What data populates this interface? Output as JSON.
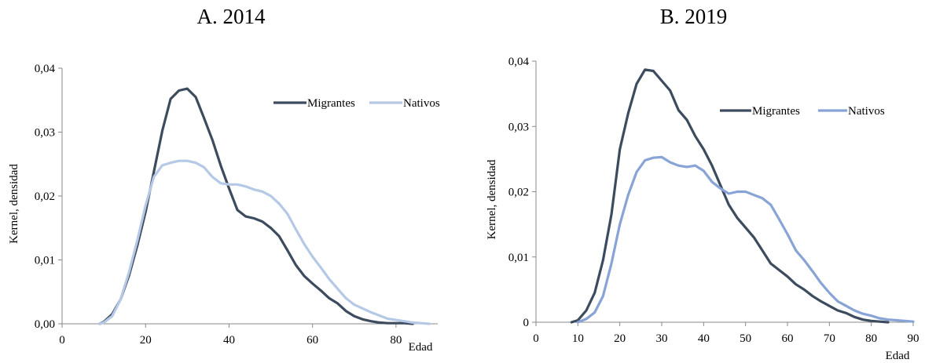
{
  "chart_data": [
    {
      "type": "line",
      "title": "A.  2014",
      "xlabel": "Edad",
      "ylabel": "Kernel, densidad",
      "xlim": [
        0,
        90
      ],
      "ylim": [
        0,
        0.04
      ],
      "xticks": [
        0,
        20,
        40,
        60,
        80
      ],
      "xtick_labels": [
        "0",
        "20",
        "40",
        "60",
        "80"
      ],
      "yticks": [
        0,
        0.01,
        0.02,
        0.03,
        0.04
      ],
      "ytick_labels": [
        "0,00",
        "0,01",
        "0,02",
        "0,03",
        "0,04"
      ],
      "grid": false,
      "legend": "top-right",
      "series": [
        {
          "name": "Migrantes",
          "color": "#3d4b5e",
          "x": [
            9,
            10,
            12,
            14,
            16,
            18,
            20,
            22,
            24,
            26,
            28,
            30,
            32,
            34,
            36,
            38,
            40,
            42,
            44,
            46,
            48,
            50,
            52,
            54,
            56,
            58,
            60,
            62,
            64,
            66,
            68,
            70,
            72,
            74,
            76,
            78,
            80,
            82,
            84
          ],
          "y": [
            0,
            0.0003,
            0.0015,
            0.0038,
            0.0075,
            0.0122,
            0.0175,
            0.0238,
            0.0302,
            0.0352,
            0.0365,
            0.0368,
            0.0355,
            0.0322,
            0.0288,
            0.0248,
            0.0212,
            0.0178,
            0.0168,
            0.0165,
            0.016,
            0.015,
            0.0137,
            0.0115,
            0.0092,
            0.0075,
            0.0063,
            0.0052,
            0.004,
            0.0032,
            0.002,
            0.0012,
            0.0007,
            0.0004,
            0.0002,
            0.0001,
            0.0001,
            0.0001,
            0
          ]
        },
        {
          "name": "Nativos",
          "color": "#b5c9e6",
          "x": [
            9,
            10,
            12,
            14,
            16,
            18,
            20,
            22,
            24,
            26,
            28,
            30,
            32,
            34,
            36,
            38,
            40,
            42,
            44,
            46,
            48,
            50,
            52,
            54,
            56,
            58,
            60,
            62,
            64,
            66,
            68,
            70,
            72,
            74,
            76,
            78,
            80,
            82,
            84,
            86,
            88
          ],
          "y": [
            0,
            0.0002,
            0.0012,
            0.0038,
            0.008,
            0.013,
            0.0185,
            0.023,
            0.0248,
            0.0252,
            0.0255,
            0.0255,
            0.0252,
            0.0245,
            0.023,
            0.022,
            0.0218,
            0.0218,
            0.0215,
            0.021,
            0.0207,
            0.02,
            0.0188,
            0.0172,
            0.0148,
            0.0125,
            0.0105,
            0.0088,
            0.007,
            0.0055,
            0.004,
            0.003,
            0.0024,
            0.0018,
            0.0013,
            0.0008,
            0.0006,
            0.0004,
            0.0002,
            0.0001,
            0
          ]
        }
      ]
    },
    {
      "type": "line",
      "title": "B. 2019",
      "xlabel": "Edad",
      "ylabel": "Kernel, densidad",
      "xlim": [
        0,
        90
      ],
      "ylim": [
        0,
        0.04
      ],
      "xticks": [
        0,
        10,
        20,
        30,
        40,
        50,
        60,
        70,
        80,
        90
      ],
      "xtick_labels": [
        "0",
        "10",
        "20",
        "30",
        "40",
        "50",
        "60",
        "70",
        "80",
        "90"
      ],
      "yticks": [
        0,
        0.01,
        0.02,
        0.03,
        0.04
      ],
      "ytick_labels": [
        "0",
        "0,01",
        "0,02",
        "0,03",
        "0,04"
      ],
      "grid": false,
      "legend": "top-right",
      "series": [
        {
          "name": "Migrantes",
          "color": "#3d4b5e",
          "x": [
            8.5,
            10,
            12,
            14,
            16,
            18,
            20,
            22,
            24,
            26,
            28,
            30,
            32,
            34,
            36,
            38,
            40,
            42,
            44,
            46,
            48,
            50,
            52,
            54,
            56,
            58,
            60,
            62,
            64,
            66,
            68,
            70,
            72,
            74,
            76,
            78,
            80,
            82,
            84
          ],
          "y": [
            0,
            0.0003,
            0.0018,
            0.0045,
            0.0095,
            0.0165,
            0.0265,
            0.032,
            0.0365,
            0.0387,
            0.0385,
            0.037,
            0.0355,
            0.0325,
            0.031,
            0.0285,
            0.0265,
            0.024,
            0.021,
            0.018,
            0.016,
            0.0145,
            0.013,
            0.011,
            0.009,
            0.008,
            0.007,
            0.0058,
            0.005,
            0.004,
            0.0032,
            0.0025,
            0.0018,
            0.0014,
            0.0008,
            0.0004,
            0.0002,
            0.0001,
            0
          ]
        },
        {
          "name": "Nativos",
          "color": "#88a3d6",
          "x": [
            10,
            12,
            14,
            16,
            18,
            20,
            22,
            24,
            26,
            28,
            30,
            32,
            34,
            36,
            38,
            40,
            42,
            44,
            46,
            48,
            50,
            52,
            54,
            56,
            58,
            60,
            62,
            64,
            66,
            68,
            70,
            72,
            74,
            76,
            78,
            80,
            82,
            84,
            86,
            88,
            90
          ],
          "y": [
            0,
            0.0005,
            0.0015,
            0.004,
            0.009,
            0.015,
            0.0195,
            0.023,
            0.0248,
            0.0252,
            0.0253,
            0.0245,
            0.024,
            0.0238,
            0.024,
            0.0232,
            0.0215,
            0.0205,
            0.0197,
            0.02,
            0.02,
            0.0195,
            0.019,
            0.018,
            0.0158,
            0.0135,
            0.011,
            0.0095,
            0.0078,
            0.006,
            0.0045,
            0.0032,
            0.0025,
            0.0018,
            0.0013,
            0.001,
            0.0006,
            0.0004,
            0.0003,
            0.0002,
            0.0001
          ]
        }
      ]
    }
  ]
}
